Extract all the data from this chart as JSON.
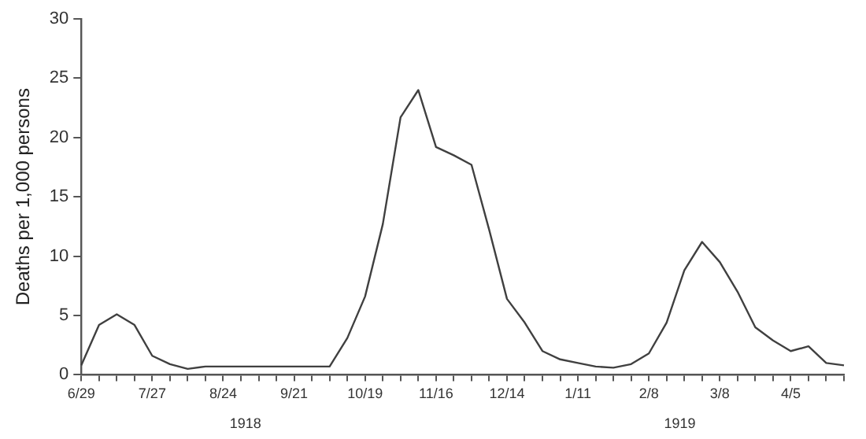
{
  "chart_data": {
    "type": "line",
    "ylabel": "Deaths per 1,000 persons",
    "categories": [
      "6/29",
      null,
      null,
      null,
      "7/27",
      null,
      null,
      null,
      "8/24",
      null,
      null,
      null,
      "9/21",
      null,
      null,
      null,
      "10/19",
      null,
      null,
      null,
      "11/16",
      null,
      null,
      null,
      "12/14",
      null,
      null,
      null,
      "1/11",
      null,
      null,
      null,
      "2/8",
      null,
      null,
      null,
      "3/8",
      null,
      null,
      null,
      "4/5",
      null,
      null,
      null
    ],
    "series": [
      {
        "color": "#404040",
        "values": [
          0.8,
          4.2,
          5.1,
          4.2,
          1.6,
          0.9,
          0.5,
          0.7,
          0.7,
          0.7,
          0.7,
          0.7,
          0.7,
          0.7,
          0.7,
          3.1,
          6.6,
          12.7,
          21.7,
          24.0,
          19.2,
          18.5,
          17.7,
          12.2,
          6.4,
          4.4,
          2.0,
          1.3,
          1.0,
          0.7,
          0.6,
          0.9,
          1.8,
          4.4,
          8.8,
          11.2,
          9.5,
          7.0,
          4.0,
          2.9,
          2.0,
          2.4,
          1.0,
          0.8
        ]
      }
    ],
    "ylim": [
      0,
      30
    ],
    "yticks": [
      0,
      5,
      10,
      15,
      20,
      25,
      30
    ],
    "annotations": [
      "1918",
      "1919"
    ],
    "grid": false,
    "legend": false,
    "marker": "none",
    "line_style": "solid"
  }
}
